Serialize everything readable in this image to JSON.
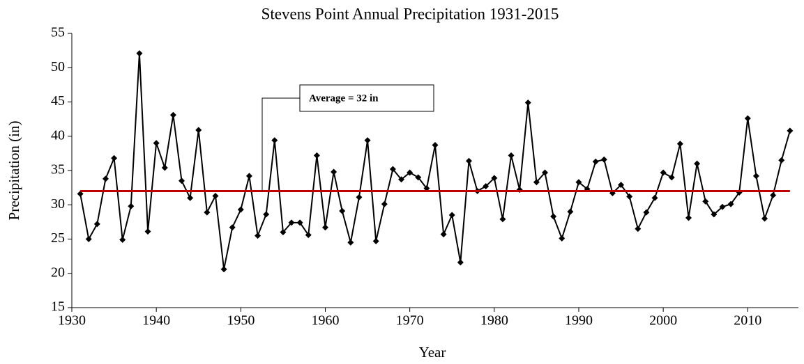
{
  "chart_data": {
    "type": "line",
    "title": "Stevens Point Annual Precipitation 1931-2015",
    "x_label": "Year",
    "y_label": "Precipitation (in)",
    "x": [
      1931,
      1932,
      1933,
      1934,
      1935,
      1936,
      1937,
      1938,
      1939,
      1940,
      1941,
      1942,
      1943,
      1944,
      1945,
      1946,
      1947,
      1948,
      1949,
      1950,
      1951,
      1952,
      1953,
      1954,
      1955,
      1956,
      1957,
      1958,
      1959,
      1960,
      1961,
      1962,
      1963,
      1964,
      1965,
      1966,
      1967,
      1968,
      1969,
      1970,
      1971,
      1972,
      1973,
      1974,
      1975,
      1976,
      1977,
      1978,
      1979,
      1980,
      1981,
      1982,
      1983,
      1984,
      1985,
      1986,
      1987,
      1988,
      1989,
      1990,
      1991,
      1992,
      1993,
      1994,
      1995,
      1996,
      1997,
      1998,
      1999,
      2000,
      2001,
      2002,
      2003,
      2004,
      2005,
      2006,
      2007,
      2008,
      2009,
      2010,
      2011,
      2012,
      2013,
      2014,
      2015
    ],
    "series": [
      {
        "color": "#000000",
        "values": [
          31.6,
          25.0,
          27.2,
          33.8,
          36.8,
          24.9,
          29.8,
          52.1,
          26.1,
          39.0,
          35.4,
          43.1,
          33.5,
          31.0,
          40.9,
          28.9,
          31.3,
          20.6,
          26.7,
          29.3,
          34.2,
          25.5,
          28.6,
          39.4,
          26.0,
          27.4,
          27.4,
          25.6,
          37.2,
          26.7,
          34.8,
          29.1,
          24.5,
          31.1,
          39.4,
          24.7,
          30.1,
          35.2,
          33.7,
          34.7,
          34.0,
          32.4,
          38.7,
          25.7,
          28.5,
          21.6,
          36.4,
          32.0,
          32.7,
          33.9,
          27.9,
          37.2,
          32.2,
          44.9,
          33.3,
          34.7,
          28.3,
          25.1,
          29.0,
          33.3,
          32.3,
          36.3,
          36.6,
          31.7,
          32.9,
          31.2,
          26.5,
          28.9,
          31.0,
          34.7,
          34.0,
          38.9,
          28.1,
          36.0,
          30.5,
          28.6,
          29.7,
          30.1,
          31.8,
          42.6,
          34.2,
          28.0,
          31.4,
          36.5,
          40.8
        ]
      }
    ],
    "average": {
      "value": 32,
      "color": "#c00000",
      "label": "Average = 32 in"
    },
    "xlim": [
      1930,
      2016
    ],
    "xticks": [
      1930,
      1940,
      1950,
      1960,
      1970,
      1980,
      1990,
      2000,
      2010
    ],
    "ylim": [
      15,
      55
    ],
    "yticks": [
      15,
      20,
      25,
      30,
      35,
      40,
      45,
      50,
      55
    ]
  }
}
